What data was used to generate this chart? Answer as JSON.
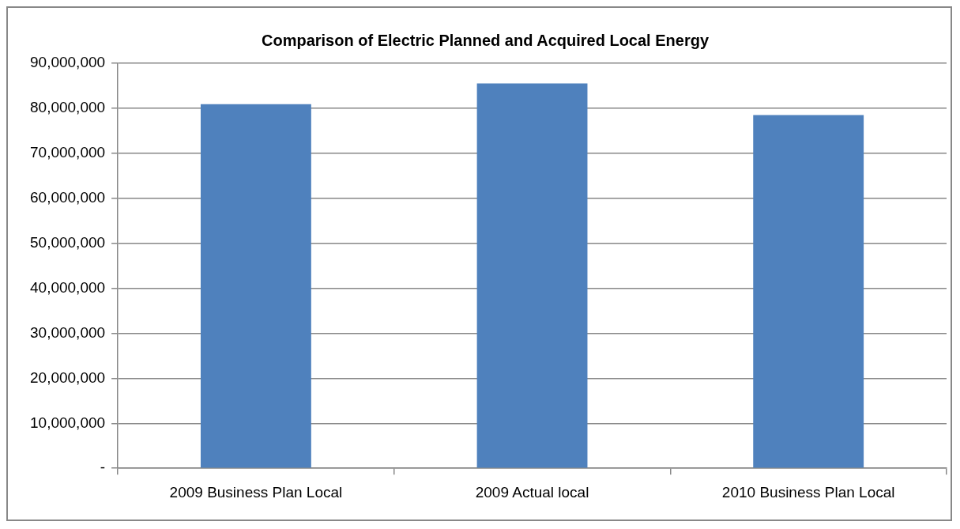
{
  "chart_data": {
    "type": "bar",
    "title": "Comparison of Electric Planned and Acquired Local Energy",
    "categories": [
      "2009 Business Plan Local",
      "2009 Actual local",
      "2010 Business Plan Local"
    ],
    "values": [
      80900000,
      85500000,
      78500000
    ],
    "color": "#4f81bd",
    "ylim": [
      0,
      90000000
    ],
    "yticks": [
      {
        "value": 0,
        "label": "-"
      },
      {
        "value": 10000000,
        "label": "10,000,000"
      },
      {
        "value": 20000000,
        "label": "20,000,000"
      },
      {
        "value": 30000000,
        "label": "30,000,000"
      },
      {
        "value": 40000000,
        "label": "40,000,000"
      },
      {
        "value": 50000000,
        "label": "50,000,000"
      },
      {
        "value": 60000000,
        "label": "60,000,000"
      },
      {
        "value": 70000000,
        "label": "70,000,000"
      },
      {
        "value": 80000000,
        "label": "80,000,000"
      },
      {
        "value": 90000000,
        "label": "90,000,000"
      }
    ],
    "grid": "y",
    "legend": false
  }
}
